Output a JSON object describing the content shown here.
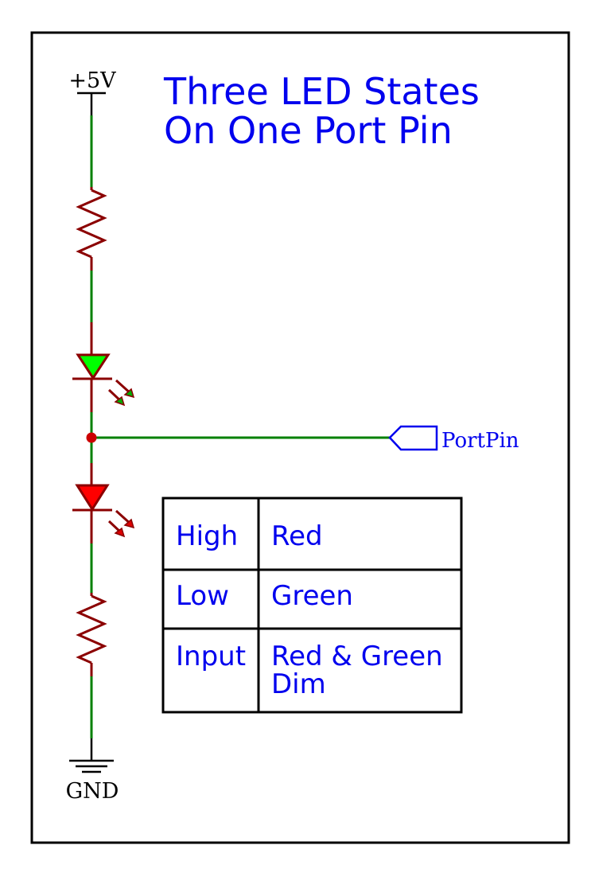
{
  "title": {
    "line1": "Three LED States",
    "line2": "On One Port Pin"
  },
  "labels": {
    "supply": "+5V",
    "ground": "GND",
    "port": "PortPin"
  },
  "table": {
    "rows": [
      {
        "state": "High",
        "led": [
          "Red"
        ]
      },
      {
        "state": "Low",
        "led": [
          "Green"
        ]
      },
      {
        "state": "Input",
        "led": [
          "Red & Green",
          "Dim"
        ]
      }
    ]
  },
  "colors": {
    "wire": "#008000",
    "component": "#8b0000",
    "text": "#0000ee",
    "led_top": "#00ff00",
    "led_bottom": "#ff0000",
    "junction": "#cc0000",
    "frame": "#000000"
  },
  "icons": {
    "led": "led-diode-icon",
    "resistor": "resistor-zigzag-icon",
    "ground": "ground-symbol-icon",
    "port": "port-pin-flag-icon"
  }
}
